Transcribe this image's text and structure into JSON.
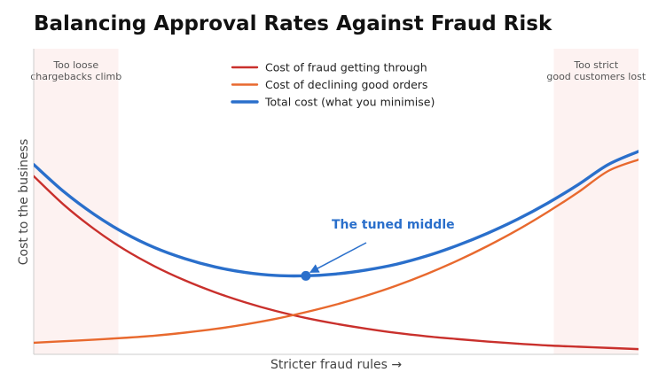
{
  "chart_data": {
    "type": "line",
    "title": "Balancing Approval Rates Against Fraud Risk",
    "xlabel": "Stricter fraud rules  →",
    "ylabel": "Cost to the business",
    "xlim": [
      0,
      1
    ],
    "ylim": [
      0,
      1
    ],
    "grid": false,
    "legend_position": "top-center",
    "series": [
      {
        "name": "Cost of fraud getting through",
        "color": "#c9302c",
        "x": [
          0,
          0.05,
          0.1,
          0.15,
          0.2,
          0.25,
          0.3,
          0.35,
          0.4,
          0.45,
          0.5,
          0.55,
          0.6,
          0.65,
          0.7,
          0.75,
          0.8,
          0.85,
          0.9,
          0.95,
          1.0
        ],
        "y": [
          0.583,
          0.489,
          0.41,
          0.343,
          0.288,
          0.242,
          0.203,
          0.17,
          0.142,
          0.119,
          0.1,
          0.084,
          0.07,
          0.059,
          0.05,
          0.042,
          0.035,
          0.029,
          0.025,
          0.021,
          0.017
        ]
      },
      {
        "name": "Cost of declining good orders",
        "color": "#e8692e",
        "x": [
          0,
          0.05,
          0.1,
          0.15,
          0.2,
          0.25,
          0.3,
          0.35,
          0.4,
          0.45,
          0.5,
          0.55,
          0.6,
          0.65,
          0.7,
          0.75,
          0.8,
          0.85,
          0.9,
          0.95,
          1.0
        ],
        "y": [
          0.038,
          0.043,
          0.048,
          0.054,
          0.061,
          0.071,
          0.083,
          0.098,
          0.116,
          0.138,
          0.163,
          0.192,
          0.225,
          0.263,
          0.306,
          0.354,
          0.407,
          0.466,
          0.53,
          0.6,
          0.637
        ]
      },
      {
        "name": "Total cost (what you minimise)",
        "color": "#2a6fcb",
        "x": [
          0,
          0.05,
          0.1,
          0.15,
          0.2,
          0.25,
          0.3,
          0.35,
          0.4,
          0.45,
          0.5,
          0.55,
          0.6,
          0.65,
          0.7,
          0.75,
          0.8,
          0.85,
          0.9,
          0.95,
          1.0
        ],
        "y": [
          0.621,
          0.532,
          0.458,
          0.397,
          0.349,
          0.313,
          0.286,
          0.268,
          0.258,
          0.257,
          0.263,
          0.276,
          0.295,
          0.322,
          0.356,
          0.396,
          0.442,
          0.495,
          0.555,
          0.621,
          0.664
        ]
      }
    ],
    "bands": [
      {
        "label_lines": [
          "Too loose",
          "chargebacks climb"
        ],
        "x_range": [
          0,
          0.14
        ],
        "color": "#fdf2f1"
      },
      {
        "label_lines": [
          "Too strict",
          "good customers lost"
        ],
        "x_range": [
          0.86,
          1.0
        ],
        "color": "#fdf2f1"
      }
    ],
    "annotations": [
      {
        "text": "The tuned middle",
        "point": {
          "x": 0.45,
          "y": 0.257
        },
        "color": "#2a6fcb"
      }
    ]
  }
}
